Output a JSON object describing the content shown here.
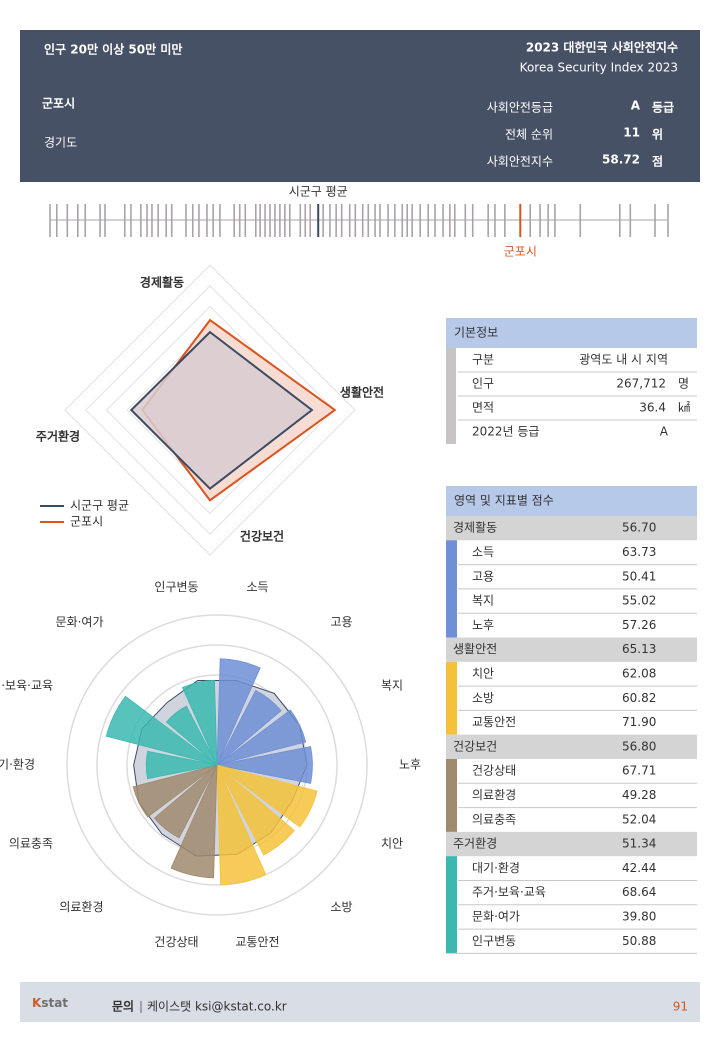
{
  "header": {
    "group": "인구 20만 이상 50만 미만",
    "title": "2023 대한민국 사회안전지수",
    "subtitle": "Korea Security Index 2023",
    "city": "군포시",
    "province": "경기도",
    "stats": [
      {
        "label": "사회안전등급",
        "value": "A",
        "unit": "등급"
      },
      {
        "label": "전체 순위",
        "value": "11",
        "unit": "위"
      },
      {
        "label": "사회안전지수",
        "value": "58.72",
        "unit": "점"
      }
    ]
  },
  "chart_data": [
    {
      "type": "strip",
      "xlim": [
        0,
        100
      ],
      "values": [
        0,
        1.1,
        2.8,
        4.5,
        5.7,
        8.1,
        8.9,
        12.1,
        13.1,
        14.7,
        15.7,
        16.5,
        17.5,
        18.8,
        19.7,
        22,
        23.1,
        24.1,
        25.4,
        26.4,
        27.5,
        29.8,
        30.7,
        31.6,
        33.3,
        34,
        34.8,
        35.6,
        36.4,
        37.2,
        38,
        38.8,
        40.5,
        41.3,
        42.1,
        44.2,
        45.3,
        46.3,
        47.2,
        48.5,
        49.4,
        50.6,
        51.5,
        52.6,
        53.4,
        54.7,
        55.8,
        57,
        57.8,
        58.6,
        59.9,
        61.2,
        62.3,
        63.6,
        64.7,
        65.5,
        67.2,
        68.4,
        70.9,
        72,
        73.6,
        77.7,
        79.3,
        80.6,
        81.7,
        85.8,
        92.2,
        93.9,
        97.9,
        100
      ],
      "color": "#a9a3a8",
      "average_label": "시군구 평균",
      "average": 43.4,
      "average_color": "#3d4a63",
      "highlight_label": "군포시",
      "highlight": 76.1,
      "highlight_color": "#d9541e"
    },
    {
      "type": "radar",
      "categories": [
        "경제활동",
        "생활안전",
        "건강보건",
        "주거환경"
      ],
      "rlim": [
        35,
        70
      ],
      "rticks": [
        40,
        45,
        50,
        55,
        60,
        65,
        70
      ],
      "legend": "bottom-left",
      "series": [
        {
          "name": "시군구 평균",
          "color": "#3d4a63",
          "fill": "#d8cdd0",
          "values": [
            53.8,
            59.6,
            54.0,
            54.0
          ]
        },
        {
          "name": "군포시",
          "color": "#d9541e",
          "fill": "#f6dcd3",
          "values": [
            56.7,
            65.13,
            56.8,
            51.34
          ]
        }
      ]
    },
    {
      "type": "polar_bar",
      "categories": [
        "소득",
        "고용",
        "복지",
        "노후",
        "치안",
        "소방",
        "교통안전",
        "건강상태",
        "의료환경",
        "의료충족",
        "대기·환경",
        "주거·보육·교육",
        "문화·여가",
        "인구변동"
      ],
      "values": [
        63.73,
        50.41,
        55.02,
        57.26,
        62.08,
        60.82,
        71.9,
        67.71,
        49.28,
        52.04,
        42.44,
        68.64,
        39.8,
        50.88
      ],
      "colors": [
        "#6f8fd6",
        "#6f8fd6",
        "#6f8fd6",
        "#6f8fd6",
        "#f4c23a",
        "#f4c23a",
        "#f4c23a",
        "#a08a6e",
        "#a08a6e",
        "#a08a6e",
        "#3bb8b0",
        "#3bb8b0",
        "#3bb8b0",
        "#3bb8b0"
      ],
      "average_values": [
        52,
        55,
        55,
        54,
        50,
        52,
        55,
        56,
        53,
        52,
        50,
        50,
        48,
        52
      ],
      "rlim": [
        0,
        90
      ],
      "rticks": [
        18,
        36,
        54,
        72,
        90
      ]
    }
  ],
  "basic_info": {
    "title": "기본정보",
    "rows": [
      {
        "label": "구분",
        "value": "광역도 내 시 지역"
      },
      {
        "label": "인구",
        "value": "267,712",
        "unit": "명"
      },
      {
        "label": "면적",
        "value": "36.4",
        "unit": "㎢"
      },
      {
        "label": "2022년 등급",
        "value": "A"
      }
    ]
  },
  "scores": {
    "title": "영역 및 지표별 점수",
    "groups": [
      {
        "name": "경제활동",
        "score": "56.70",
        "color": "#6f8fd6",
        "items": [
          {
            "name": "소득",
            "score": "63.73"
          },
          {
            "name": "고용",
            "score": "50.41"
          },
          {
            "name": "복지",
            "score": "55.02"
          },
          {
            "name": "노후",
            "score": "57.26"
          }
        ]
      },
      {
        "name": "생활안전",
        "score": "65.13",
        "color": "#f4c23a",
        "items": [
          {
            "name": "치안",
            "score": "62.08"
          },
          {
            "name": "소방",
            "score": "60.82"
          },
          {
            "name": "교통안전",
            "score": "71.90"
          }
        ]
      },
      {
        "name": "건강보건",
        "score": "56.80",
        "color": "#a08a6e",
        "items": [
          {
            "name": "건강상태",
            "score": "67.71"
          },
          {
            "name": "의료환경",
            "score": "49.28"
          },
          {
            "name": "의료충족",
            "score": "52.04"
          }
        ]
      },
      {
        "name": "주거환경",
        "score": "51.34",
        "color": "#3bb8b0",
        "items": [
          {
            "name": "대기·환경",
            "score": "42.44"
          },
          {
            "name": "주거·보육·교육",
            "score": "68.64"
          },
          {
            "name": "문화·여가",
            "score": "39.80"
          },
          {
            "name": "인구변동",
            "score": "50.88"
          }
        ]
      }
    ]
  },
  "footer": {
    "logo_k": "K",
    "logo_rest": "stat",
    "contact_label": "문의",
    "contact": "케이스탯 ksi@kstat.co.kr",
    "page": "91"
  }
}
